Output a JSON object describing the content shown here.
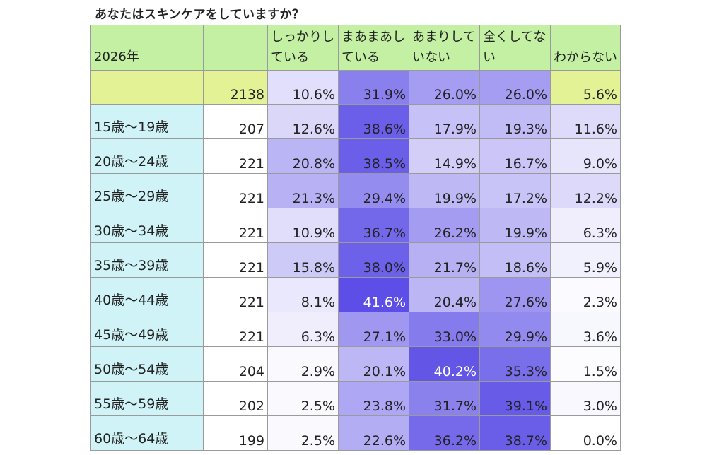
{
  "title": "あなたはスキンケアをしていますか？",
  "colors": {
    "header_bg": "#c4f0a4",
    "total_row_bg": "#e2f295",
    "age_label_bg": "#cff3f7",
    "scale_low": "#ffffff",
    "scale_high": "#5a4ce6"
  },
  "chart_data": {
    "type": "table",
    "title": "あなたはスキンケアをしていますか？",
    "year_label": "2026年",
    "columns": [
      "しっかりしている",
      "まあまあしている",
      "あまりしていない",
      "全くしてない",
      "わからない"
    ],
    "header_lines": [
      [
        "しっかりし",
        "ている"
      ],
      [
        "まあまあし",
        "ている"
      ],
      [
        "あまりして",
        "いない"
      ],
      [
        "全くしてな",
        "い"
      ],
      [
        "",
        "わからない"
      ]
    ],
    "rows": [
      {
        "label": "",
        "n": "2138",
        "values": [
          "10.6%",
          "31.9%",
          "26.0%",
          "26.0%",
          "5.6%"
        ]
      },
      {
        "label": "15歳～19歳",
        "n": "207",
        "values": [
          "12.6%",
          "38.6%",
          "17.9%",
          "19.3%",
          "11.6%"
        ]
      },
      {
        "label": "20歳～24歳",
        "n": "221",
        "values": [
          "20.8%",
          "38.5%",
          "14.9%",
          "16.7%",
          "9.0%"
        ]
      },
      {
        "label": "25歳～29歳",
        "n": "221",
        "values": [
          "21.3%",
          "29.4%",
          "19.9%",
          "17.2%",
          "12.2%"
        ]
      },
      {
        "label": "30歳～34歳",
        "n": "221",
        "values": [
          "10.9%",
          "36.7%",
          "26.2%",
          "19.9%",
          "6.3%"
        ]
      },
      {
        "label": "35歳～39歳",
        "n": "221",
        "values": [
          "15.8%",
          "38.0%",
          "21.7%",
          "18.6%",
          "5.9%"
        ]
      },
      {
        "label": "40歳～44歳",
        "n": "221",
        "values": [
          "8.1%",
          "41.6%",
          "20.4%",
          "27.6%",
          "2.3%"
        ]
      },
      {
        "label": "45歳～49歳",
        "n": "221",
        "values": [
          "6.3%",
          "27.1%",
          "33.0%",
          "29.9%",
          "3.6%"
        ]
      },
      {
        "label": "50歳～54歳",
        "n": "204",
        "values": [
          "2.9%",
          "20.1%",
          "40.2%",
          "35.3%",
          "1.5%"
        ]
      },
      {
        "label": "55歳～59歳",
        "n": "202",
        "values": [
          "2.5%",
          "23.8%",
          "31.7%",
          "39.1%",
          "3.0%"
        ]
      },
      {
        "label": "60歳～64歳",
        "n": "199",
        "values": [
          "2.5%",
          "22.6%",
          "36.2%",
          "38.7%",
          "0.0%"
        ]
      }
    ]
  }
}
